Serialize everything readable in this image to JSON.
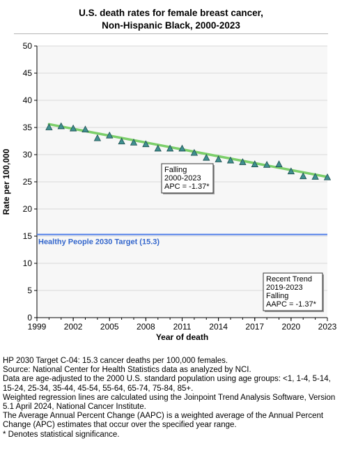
{
  "title": {
    "line1": "U.S. death rates for female breast cancer,",
    "line2": "Non-Hispanic Black,  2000-2023"
  },
  "colors": {
    "plot_bg": "#f7f7f7",
    "grid": "#d9d9d9",
    "trend_line": "#7ccf6a",
    "marker_fill": "#3f8f8f",
    "marker_stroke": "#1d4f4f",
    "target_line": "#4f7ee8",
    "target_text": "#3366cc"
  },
  "chart_data": {
    "type": "scatter",
    "xlabel": "Year of death",
    "ylabel": "Rate per 100,000",
    "xlim": [
      1999,
      2023
    ],
    "ylim": [
      0,
      50
    ],
    "xticks": [
      1999,
      2002,
      2005,
      2008,
      2011,
      2014,
      2017,
      2020,
      2023
    ],
    "yticks": [
      0,
      5,
      10,
      15,
      20,
      25,
      30,
      35,
      40,
      45,
      50
    ],
    "grid": true,
    "series": [
      {
        "marker": "triangle",
        "x": [
          2000,
          2001,
          2002,
          2003,
          2004,
          2005,
          2006,
          2007,
          2008,
          2009,
          2010,
          2011,
          2012,
          2013,
          2014,
          2015,
          2016,
          2017,
          2018,
          2019,
          2020,
          2021,
          2022,
          2023
        ],
        "y": [
          35.0,
          35.2,
          34.8,
          34.6,
          33.0,
          33.5,
          32.4,
          32.2,
          31.9,
          31.1,
          31.1,
          31.1,
          30.3,
          29.4,
          29.1,
          28.9,
          28.6,
          28.2,
          28.1,
          28.2,
          26.9,
          26.0,
          25.9,
          25.8
        ]
      }
    ],
    "trend": {
      "x": [
        2000,
        2023
      ],
      "y": [
        35.6,
        25.9
      ]
    },
    "target": {
      "value": 15.3,
      "label": "Healthy People 2030 Target (15.3)"
    },
    "annotations": [
      {
        "lines": [
          "Falling",
          "2000-2023",
          "APC = -1.37*"
        ]
      },
      {
        "lines": [
          "Recent Trend",
          "2019-2023",
          "Falling",
          "AAPC = -1.37*"
        ]
      }
    ]
  },
  "notes": [
    "HP 2030 Target C-04: 15.3 cancer deaths per 100,000 females.",
    "Source: National Center for Health Statistics data as analyzed by NCI.",
    "Data are age-adjusted to the 2000 U.S. standard population using age groups: <1, 1-4, 5-14, 15-24, 25-34, 35-44, 45-54, 55-64, 65-74, 75-84, 85+.",
    "Weighted regression lines are calculated using the Joinpoint Trend Analysis Software, Version 5.1 April 2024, National Cancer Institute.",
    "The Average Annual Percent Change (AAPC) is a weighted average of the Annual Percent Change (APC) estimates that occur over the specified year range.",
    "* Denotes statistical significance."
  ]
}
